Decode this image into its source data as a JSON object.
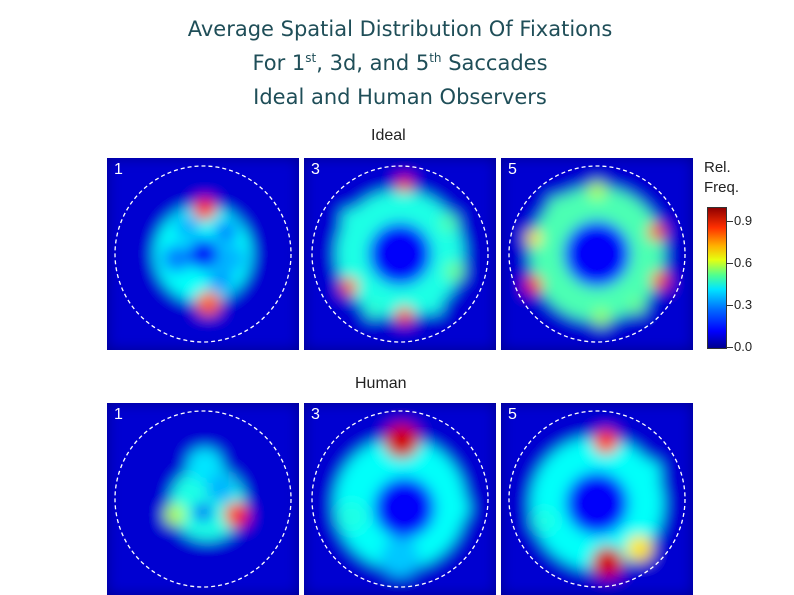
{
  "title": {
    "line1": "Average Spatial Distribution Of Fixations",
    "line2_a": "For 1",
    "line2_sup1": "st",
    "line2_b": ", 3d, and 5",
    "line2_sup2": "th",
    "line2_c": " Saccades",
    "line3": "Ideal and Human Observers"
  },
  "chart_data": {
    "type": "heatmap",
    "rows": [
      {
        "label": "Ideal",
        "panels": [
          {
            "label": "1",
            "blobs": [
              {
                "x": 0.0,
                "y": 0.0,
                "r": 0.55,
                "v": 0.28
              },
              {
                "x": 0.01,
                "y": 0.0,
                "r": 0.18,
                "v": -0.18
              },
              {
                "x": 0.02,
                "y": -0.51,
                "r": 0.13,
                "v": 0.75
              },
              {
                "x": 0.06,
                "y": 0.56,
                "r": 0.14,
                "v": 0.68
              },
              {
                "x": -0.3,
                "y": 0.05,
                "r": 0.16,
                "v": 0.15
              },
              {
                "x": 0.32,
                "y": 0.05,
                "r": 0.16,
                "v": 0.2
              },
              {
                "x": -0.18,
                "y": -0.3,
                "r": 0.14,
                "v": 0.2
              },
              {
                "x": 0.2,
                "y": 0.3,
                "r": 0.14,
                "v": 0.18
              },
              {
                "x": 0.26,
                "y": -0.25,
                "r": 0.13,
                "v": 0.15
              }
            ]
          },
          {
            "label": "3",
            "blobs": [
              {
                "x": 0.0,
                "y": 0.0,
                "r": 0.72,
                "v": 0.3
              },
              {
                "x": 0.0,
                "y": 0.0,
                "r": 0.36,
                "v": -0.22
              },
              {
                "x": 0.05,
                "y": -0.79,
                "r": 0.09,
                "v": 0.75
              },
              {
                "x": 0.05,
                "y": 0.7,
                "r": 0.1,
                "v": 0.72
              },
              {
                "x": -0.58,
                "y": 0.37,
                "r": 0.1,
                "v": 0.68
              },
              {
                "x": 0.62,
                "y": 0.2,
                "r": 0.11,
                "v": 0.38
              },
              {
                "x": 0.55,
                "y": -0.35,
                "r": 0.11,
                "v": 0.35
              },
              {
                "x": -0.55,
                "y": -0.4,
                "r": 0.11,
                "v": 0.3
              },
              {
                "x": -0.3,
                "y": 0.63,
                "r": 0.1,
                "v": 0.32
              },
              {
                "x": 0.38,
                "y": 0.58,
                "r": 0.1,
                "v": 0.3
              }
            ]
          },
          {
            "label": "5",
            "blobs": [
              {
                "x": 0.0,
                "y": 0.0,
                "r": 0.76,
                "v": 0.35
              },
              {
                "x": 0.0,
                "y": 0.0,
                "r": 0.38,
                "v": -0.25
              },
              {
                "x": -0.72,
                "y": 0.35,
                "r": 0.1,
                "v": 0.75
              },
              {
                "x": 0.72,
                "y": 0.3,
                "r": 0.1,
                "v": 0.72
              },
              {
                "x": 0.68,
                "y": -0.25,
                "r": 0.1,
                "v": 0.7
              },
              {
                "x": -0.72,
                "y": -0.18,
                "r": 0.09,
                "v": 0.55
              },
              {
                "x": 0.0,
                "y": -0.72,
                "r": 0.1,
                "v": 0.45
              },
              {
                "x": 0.05,
                "y": 0.72,
                "r": 0.1,
                "v": 0.42
              },
              {
                "x": -0.45,
                "y": -0.55,
                "r": 0.1,
                "v": 0.35
              },
              {
                "x": 0.45,
                "y": 0.58,
                "r": 0.1,
                "v": 0.38
              }
            ]
          }
        ]
      },
      {
        "label": "Human",
        "panels": [
          {
            "label": "1",
            "blobs": [
              {
                "x": 0.05,
                "y": 0.05,
                "r": 0.42,
                "v": 0.3
              },
              {
                "x": 0.38,
                "y": 0.18,
                "r": 0.14,
                "v": 0.75
              },
              {
                "x": 0.0,
                "y": 0.15,
                "r": 0.1,
                "v": -0.3
              },
              {
                "x": -0.32,
                "y": 0.18,
                "r": 0.12,
                "v": 0.45
              },
              {
                "x": 0.02,
                "y": -0.38,
                "r": 0.2,
                "v": 0.25
              },
              {
                "x": 0.2,
                "y": -0.12,
                "r": 0.16,
                "v": 0.2
              }
            ]
          },
          {
            "label": "3",
            "blobs": [
              {
                "x": 0.0,
                "y": 0.05,
                "r": 0.74,
                "v": 0.28
              },
              {
                "x": 0.05,
                "y": 0.1,
                "r": 0.35,
                "v": -0.15
              },
              {
                "x": 0.02,
                "y": -0.66,
                "r": 0.2,
                "v": 0.82
              },
              {
                "x": -0.55,
                "y": 0.2,
                "r": 0.18,
                "v": 0.3
              },
              {
                "x": 0.6,
                "y": 0.1,
                "r": 0.18,
                "v": 0.28
              },
              {
                "x": 0.0,
                "y": 0.66,
                "r": 0.22,
                "v": 0.22
              }
            ]
          },
          {
            "label": "5",
            "blobs": [
              {
                "x": 0.0,
                "y": 0.05,
                "r": 0.75,
                "v": 0.28
              },
              {
                "x": 0.0,
                "y": 0.05,
                "r": 0.36,
                "v": -0.15
              },
              {
                "x": 0.1,
                "y": -0.65,
                "r": 0.14,
                "v": 0.72
              },
              {
                "x": 0.12,
                "y": 0.72,
                "r": 0.18,
                "v": 0.82
              },
              {
                "x": 0.48,
                "y": 0.56,
                "r": 0.15,
                "v": 0.55
              },
              {
                "x": -0.6,
                "y": 0.25,
                "r": 0.14,
                "v": 0.3
              },
              {
                "x": 0.58,
                "y": -0.3,
                "r": 0.14,
                "v": 0.28
              }
            ]
          }
        ]
      }
    ],
    "colorbar": {
      "title_line1": "Rel.",
      "title_line2": "Freq.",
      "ticks": [
        "0.9",
        "0.6",
        "0.3",
        "0.0"
      ],
      "tick_values": [
        0.9,
        0.6,
        0.3,
        0.0
      ],
      "range": [
        0,
        1
      ],
      "colormap": "jet"
    }
  }
}
